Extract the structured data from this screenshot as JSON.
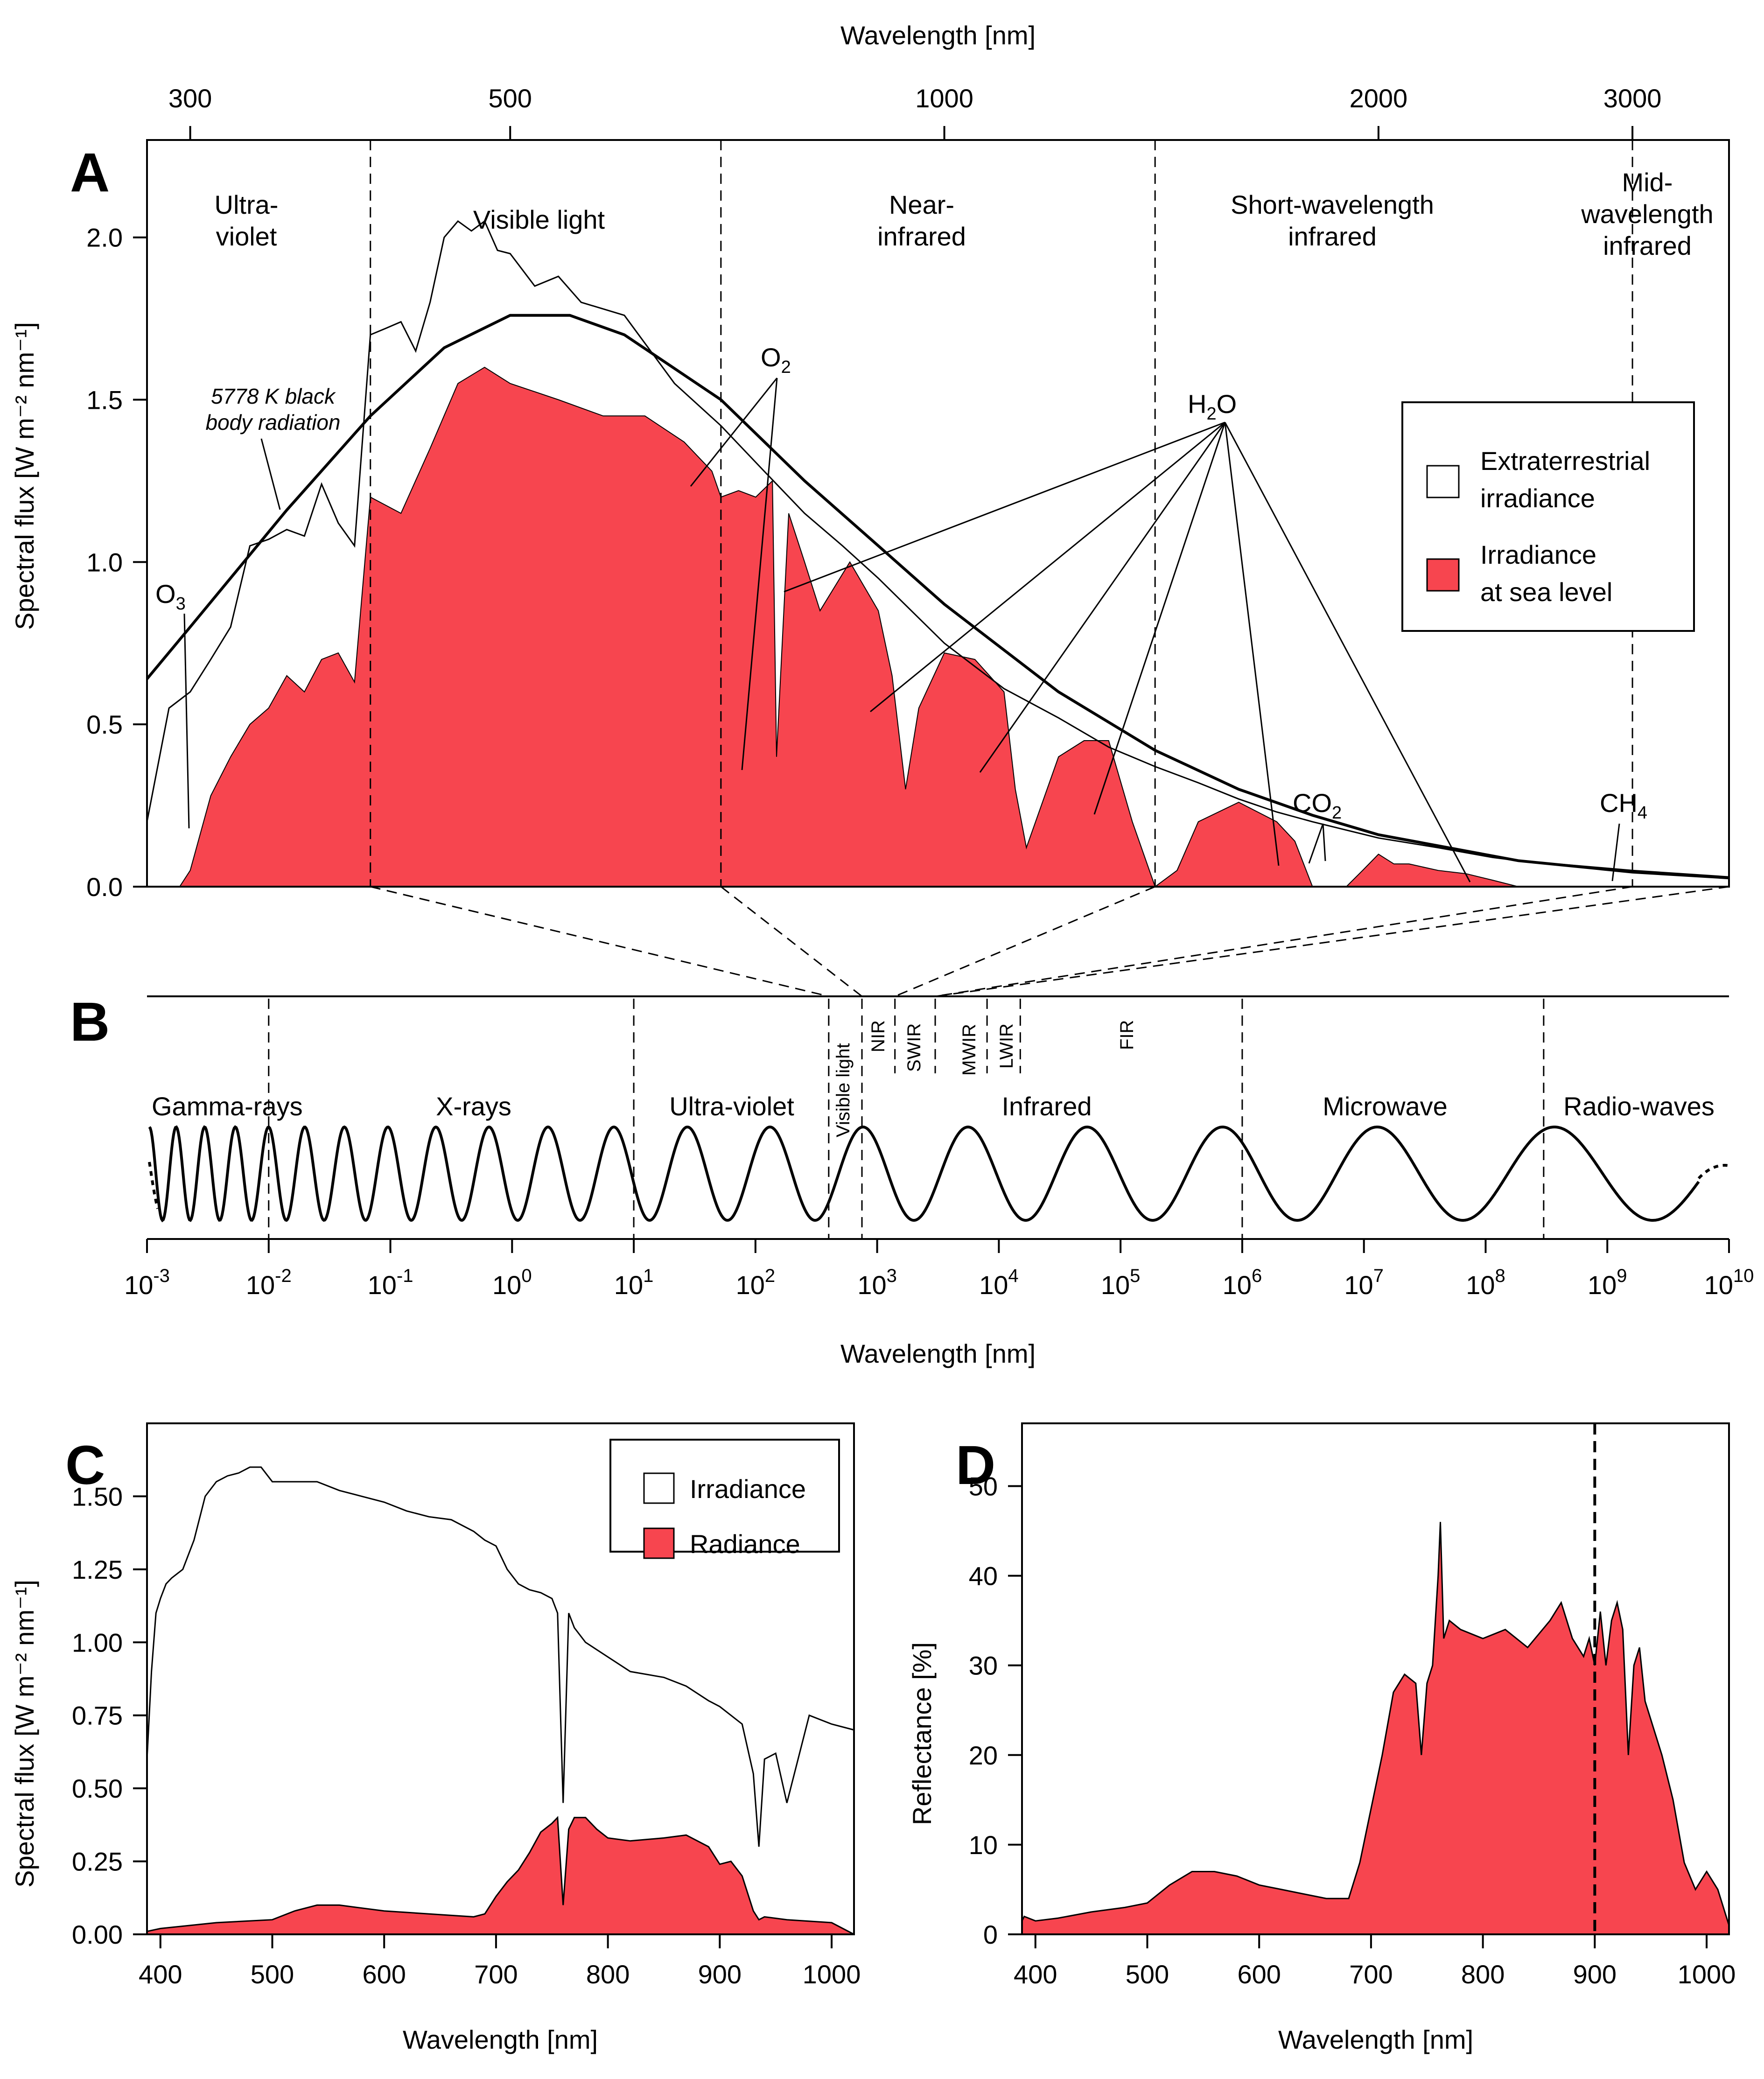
{
  "colors": {
    "red": "#f7454f",
    "line": "#000000"
  },
  "panelA": {
    "label": "A",
    "top_axis_label": "Wavelength [nm]",
    "ylabel": "Spectral flux [W m⁻² nm⁻¹]",
    "regions": [
      {
        "name": "Ultra-\nviolet"
      },
      {
        "name": "Visible light"
      },
      {
        "name": "Near-\ninfrared"
      },
      {
        "name": "Short-wavelength\ninfrared"
      },
      {
        "name": "Mid-\nwavelength\ninfrared"
      }
    ],
    "blackbody_label": "5778 K black\nbody radiation",
    "gases": {
      "o3": "O",
      "o3_sub": "3",
      "o2": "O",
      "o2_sub": "2",
      "h2o_a": "H",
      "h2o_sub": "2",
      "h2o_b": "O",
      "co2": "CO",
      "co2_sub": "2",
      "ch4": "CH",
      "ch4_sub": "4"
    },
    "legend": [
      {
        "name": "Extraterrestrial\nirradiance"
      },
      {
        "name": "Irradiance\nat sea level"
      }
    ]
  },
  "panelB": {
    "label": "B",
    "xlabel": "Wavelength [nm]",
    "bands": [
      {
        "name": "Gamma-rays"
      },
      {
        "name": "X-rays"
      },
      {
        "name": "Ultra-violet"
      },
      {
        "name": "Infrared"
      },
      {
        "name": "Microwave"
      },
      {
        "name": "Radio-waves"
      }
    ],
    "sub_bands": [
      {
        "name": "Visible light"
      },
      {
        "name": "NIR"
      },
      {
        "name": "SWIR"
      },
      {
        "name": "MWIR"
      },
      {
        "name": "LWIR"
      },
      {
        "name": "FIR"
      }
    ]
  },
  "panelC": {
    "label": "C",
    "xlabel": "Wavelength [nm]",
    "ylabel": "Spectral flux [W m⁻² nm⁻¹]",
    "legend": [
      {
        "name": "Irradiance"
      },
      {
        "name": "Radiance"
      }
    ]
  },
  "panelD": {
    "label": "D",
    "xlabel": "Wavelength [nm]",
    "ylabel": "Reflectance [%]"
  },
  "chart_data": [
    {
      "type": "area",
      "panel": "A",
      "xscale": "log",
      "xlim": [
        280,
        3500
      ],
      "ylim": [
        0,
        2.3
      ],
      "x_ticks": [
        300,
        500,
        1000,
        2000,
        3000
      ],
      "y_ticks": [
        0.0,
        0.5,
        1.0,
        1.5,
        2.0
      ],
      "y_tick_labels": [
        "0.0",
        "0.5",
        "1.0",
        "1.5",
        "2.0"
      ],
      "region_boundaries": [
        400,
        700,
        1400,
        3000
      ],
      "blackbody": {
        "x": [
          280,
          300,
          350,
          400,
          450,
          500,
          550,
          600,
          700,
          800,
          900,
          1000,
          1200,
          1400,
          1600,
          1800,
          2000,
          2500,
          3000,
          3500
        ],
        "y": [
          0.64,
          0.8,
          1.16,
          1.45,
          1.66,
          1.76,
          1.76,
          1.7,
          1.5,
          1.25,
          1.05,
          0.87,
          0.6,
          0.42,
          0.3,
          0.22,
          0.16,
          0.08,
          0.045,
          0.027
        ]
      },
      "extraterrestrial": {
        "x": [
          280,
          290,
          300,
          310,
          320,
          330,
          340,
          350,
          360,
          370,
          380,
          390,
          400,
          410,
          420,
          430,
          440,
          450,
          460,
          470,
          480,
          490,
          500,
          520,
          540,
          560,
          600,
          650,
          700,
          750,
          800,
          850,
          900,
          1000,
          1100,
          1200,
          1300,
          1400,
          1500,
          1600,
          1700,
          1800,
          2000,
          2200,
          2400,
          2500,
          3000,
          3500
        ],
        "y": [
          0.2,
          0.55,
          0.6,
          0.7,
          0.8,
          1.05,
          1.07,
          1.1,
          1.08,
          1.24,
          1.12,
          1.05,
          1.7,
          1.72,
          1.74,
          1.65,
          1.8,
          2.0,
          2.05,
          2.02,
          2.05,
          1.96,
          1.95,
          1.85,
          1.88,
          1.8,
          1.76,
          1.55,
          1.42,
          1.28,
          1.15,
          1.05,
          0.95,
          0.75,
          0.61,
          0.52,
          0.43,
          0.37,
          0.32,
          0.27,
          0.23,
          0.2,
          0.15,
          0.12,
          0.09,
          0.08,
          0.05,
          0.03
        ]
      },
      "sea_level": {
        "x": [
          280,
          295,
          300,
          310,
          320,
          330,
          340,
          350,
          360,
          370,
          380,
          390,
          400,
          420,
          440,
          460,
          480,
          500,
          540,
          580,
          620,
          660,
          690,
          700,
          720,
          740,
          760,
          765,
          780,
          800,
          820,
          860,
          900,
          920,
          940,
          960,
          1000,
          1050,
          1100,
          1120,
          1140,
          1200,
          1250,
          1300,
          1350,
          1400,
          1450,
          1500,
          1600,
          1700,
          1750,
          1800,
          1900,
          1950,
          2000,
          2050,
          2100,
          2200,
          2300,
          2400,
          2500
        ],
        "y": [
          0,
          0,
          0.05,
          0.28,
          0.4,
          0.5,
          0.55,
          0.65,
          0.6,
          0.7,
          0.72,
          0.63,
          1.2,
          1.15,
          1.35,
          1.55,
          1.6,
          1.55,
          1.5,
          1.45,
          1.45,
          1.37,
          1.28,
          1.2,
          1.22,
          1.2,
          1.25,
          0.4,
          1.15,
          1.0,
          0.85,
          1.0,
          0.85,
          0.65,
          0.3,
          0.55,
          0.72,
          0.7,
          0.6,
          0.3,
          0.12,
          0.4,
          0.45,
          0.45,
          0.2,
          0.0,
          0.05,
          0.2,
          0.26,
          0.2,
          0.14,
          0.0,
          0.0,
          0.05,
          0.1,
          0.07,
          0.07,
          0.05,
          0.04,
          0.02,
          0.0
        ]
      }
    },
    {
      "type": "line",
      "panel": "B",
      "xscale": "log",
      "xlim": [
        0.001,
        10000000000
      ],
      "tick_labels": [
        {
          "b": "10",
          "e": "-3"
        },
        {
          "b": "10",
          "e": "-2"
        },
        {
          "b": "10",
          "e": "-1"
        },
        {
          "b": "10",
          "e": "0"
        },
        {
          "b": "10",
          "e": "1"
        },
        {
          "b": "10",
          "e": "2"
        },
        {
          "b": "10",
          "e": "3"
        },
        {
          "b": "10",
          "e": "4"
        },
        {
          "b": "10",
          "e": "5"
        },
        {
          "b": "10",
          "e": "6"
        },
        {
          "b": "10",
          "e": "7"
        },
        {
          "b": "10",
          "e": "8"
        },
        {
          "b": "10",
          "e": "9"
        },
        {
          "b": "10",
          "e": "10"
        }
      ],
      "band_boundaries": [
        0.01,
        10,
        400,
        750,
        1000000,
        300000000
      ],
      "sub_band_boundaries": [
        1400,
        3000,
        8000,
        15000
      ]
    },
    {
      "type": "area",
      "panel": "C",
      "xlim": [
        388,
        1020
      ],
      "ylim": [
        0,
        1.75
      ],
      "x_ticks": [
        400,
        500,
        600,
        700,
        800,
        900,
        1000
      ],
      "y_ticks": [
        0.0,
        0.25,
        0.5,
        0.75,
        1.0,
        1.25,
        1.5
      ],
      "y_tick_labels": [
        "0.00",
        "0.25",
        "0.50",
        "0.75",
        "1.00",
        "1.25",
        "1.50"
      ],
      "series": [
        {
          "name": "Irradiance",
          "x": [
            388,
            392,
            396,
            400,
            405,
            410,
            420,
            430,
            440,
            450,
            460,
            470,
            480,
            490,
            500,
            520,
            540,
            560,
            580,
            600,
            620,
            640,
            660,
            680,
            690,
            700,
            710,
            720,
            730,
            740,
            750,
            755,
            760,
            765,
            770,
            780,
            800,
            820,
            850,
            870,
            890,
            900,
            910,
            920,
            930,
            935,
            940,
            950,
            960,
            980,
            1000,
            1020
          ],
          "y": [
            0.6,
            0.9,
            1.1,
            1.15,
            1.2,
            1.22,
            1.25,
            1.35,
            1.5,
            1.55,
            1.57,
            1.58,
            1.6,
            1.6,
            1.55,
            1.55,
            1.55,
            1.52,
            1.5,
            1.48,
            1.45,
            1.43,
            1.42,
            1.38,
            1.35,
            1.33,
            1.25,
            1.2,
            1.18,
            1.17,
            1.15,
            1.1,
            0.45,
            1.1,
            1.05,
            1.0,
            0.95,
            0.9,
            0.88,
            0.85,
            0.8,
            0.78,
            0.75,
            0.72,
            0.55,
            0.3,
            0.6,
            0.62,
            0.45,
            0.75,
            0.72,
            0.7
          ]
        },
        {
          "name": "Radiance",
          "x": [
            388,
            400,
            450,
            500,
            520,
            540,
            560,
            580,
            600,
            640,
            680,
            690,
            700,
            710,
            720,
            730,
            740,
            750,
            755,
            760,
            765,
            770,
            780,
            790,
            800,
            820,
            850,
            870,
            890,
            900,
            910,
            920,
            930,
            935,
            940,
            960,
            1000,
            1020
          ],
          "y": [
            0.01,
            0.02,
            0.04,
            0.05,
            0.08,
            0.1,
            0.1,
            0.09,
            0.08,
            0.07,
            0.06,
            0.07,
            0.13,
            0.18,
            0.22,
            0.28,
            0.35,
            0.38,
            0.4,
            0.1,
            0.36,
            0.4,
            0.4,
            0.36,
            0.33,
            0.32,
            0.33,
            0.34,
            0.3,
            0.24,
            0.25,
            0.2,
            0.08,
            0.05,
            0.06,
            0.05,
            0.04,
            0.0
          ]
        }
      ]
    },
    {
      "type": "area",
      "panel": "D",
      "xlim": [
        388,
        1020
      ],
      "ylim": [
        0,
        57
      ],
      "x_ticks": [
        400,
        500,
        600,
        700,
        800,
        900,
        1000
      ],
      "y_ticks": [
        0,
        10,
        20,
        30,
        40,
        50
      ],
      "vline": 900,
      "series": [
        {
          "name": "Reflectance",
          "x": [
            388,
            390,
            400,
            420,
            450,
            480,
            500,
            520,
            540,
            560,
            580,
            600,
            620,
            640,
            660,
            680,
            690,
            700,
            710,
            720,
            730,
            740,
            745,
            750,
            755,
            760,
            762,
            765,
            770,
            780,
            800,
            820,
            840,
            860,
            870,
            880,
            890,
            895,
            900,
            905,
            910,
            915,
            920,
            925,
            930,
            935,
            940,
            945,
            950,
            960,
            970,
            980,
            990,
            1000,
            1010,
            1020
          ],
          "y": [
            1.5,
            2.0,
            1.5,
            1.8,
            2.5,
            3.0,
            3.5,
            5.5,
            7.0,
            7.0,
            6.5,
            5.5,
            5.0,
            4.5,
            4.0,
            4.0,
            8.0,
            14.0,
            20.0,
            27.0,
            29.0,
            28.0,
            20.0,
            28.0,
            30.0,
            40.0,
            46.0,
            33.0,
            35.0,
            34.0,
            33.0,
            34.0,
            32.0,
            35.0,
            37.0,
            33.0,
            31.0,
            33.0,
            30.0,
            36.0,
            30.0,
            35.0,
            37.0,
            34.0,
            20.0,
            30.0,
            32.0,
            26.0,
            24.0,
            20.0,
            15.0,
            8.0,
            5.0,
            7.0,
            5.0,
            1.0
          ]
        }
      ]
    }
  ]
}
